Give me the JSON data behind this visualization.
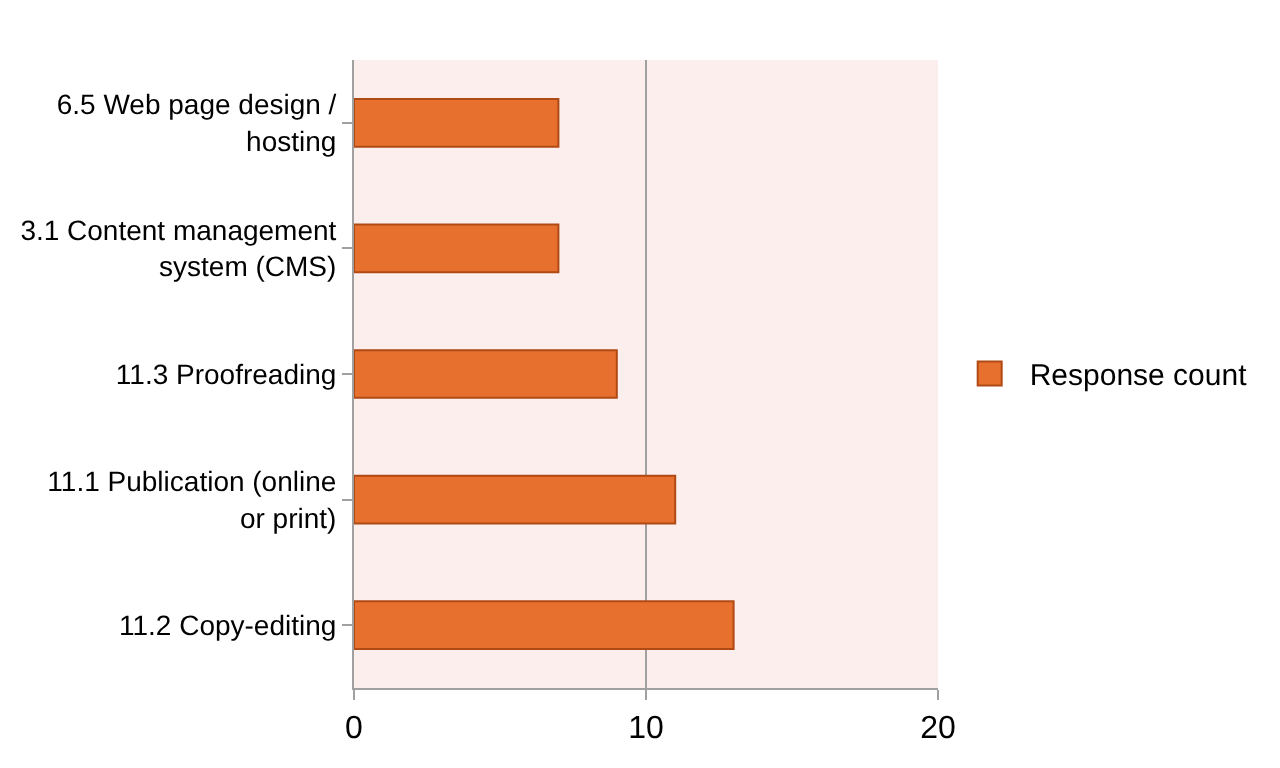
{
  "chart_data": {
    "type": "bar",
    "orientation": "horizontal",
    "categories": [
      "6.5 Web page design / hosting",
      "3.1 Content management system (CMS)",
      "11.3 Proofreading",
      "11.1 Publication (online or print)",
      "11.2 Copy-editing"
    ],
    "series": [
      {
        "name": "Response count",
        "color": "#e8702f",
        "values": [
          7,
          7,
          9,
          11,
          13
        ]
      }
    ],
    "xlim": [
      0,
      20
    ],
    "xticks": [
      0,
      10,
      20
    ],
    "grid": "x",
    "legend": "right"
  }
}
